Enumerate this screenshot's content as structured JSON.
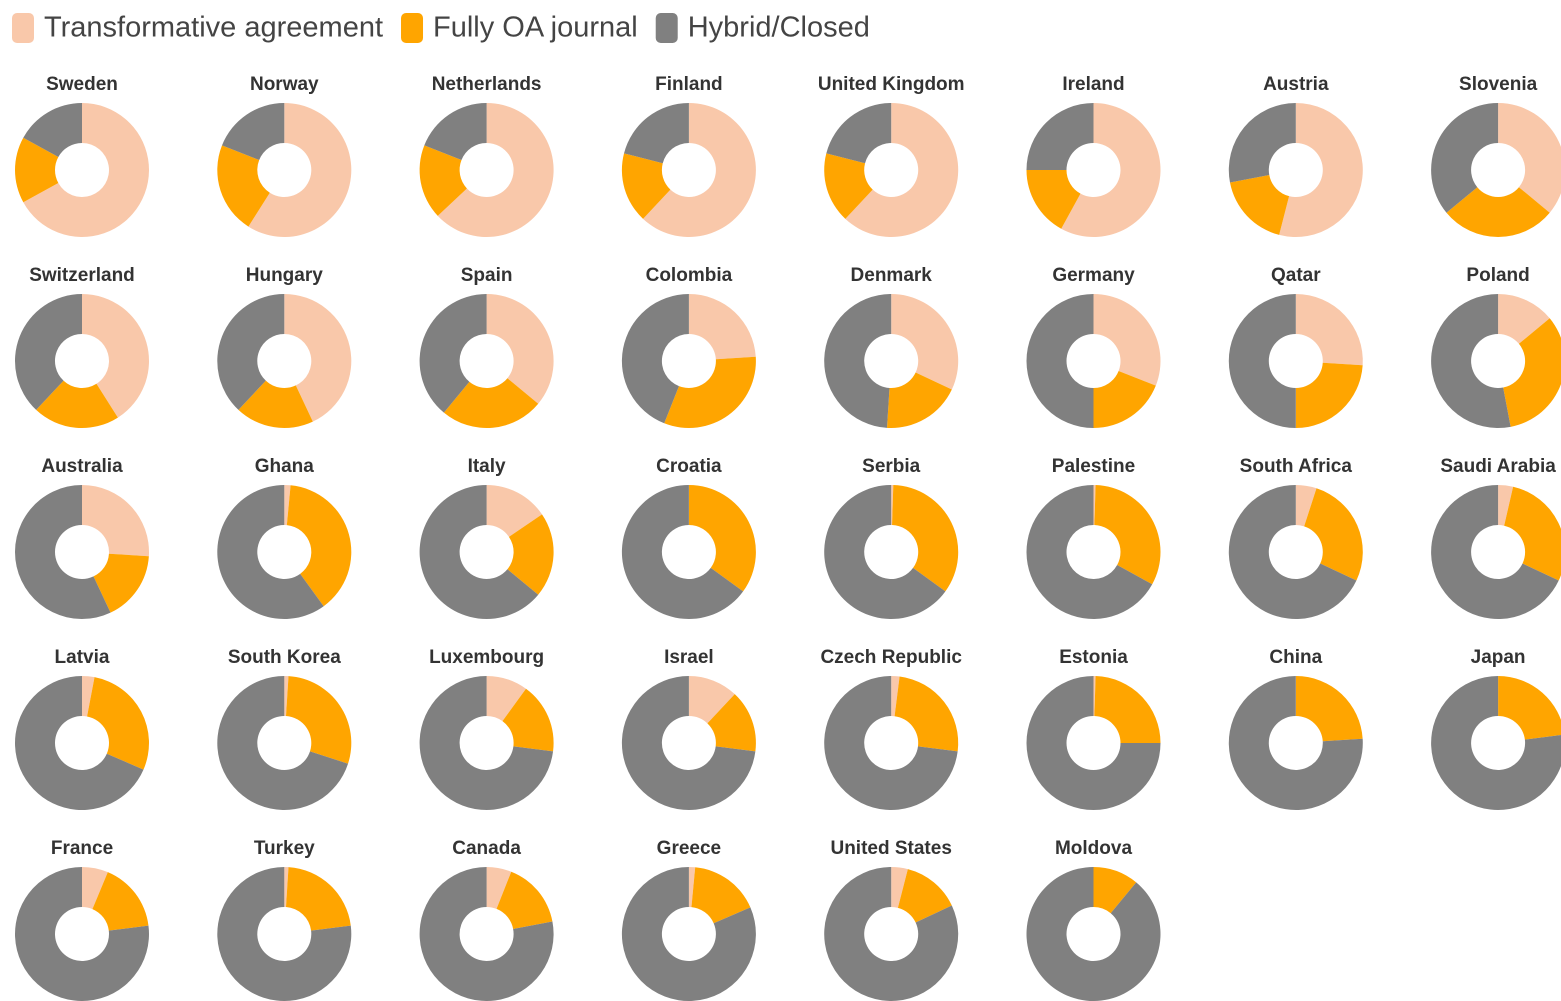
{
  "chart_data": {
    "type": "donut",
    "categories": [
      "Sweden",
      "Norway",
      "Netherlands",
      "Finland",
      "United Kingdom",
      "Ireland",
      "Austria",
      "Slovenia",
      "Switzerland",
      "Hungary",
      "Spain",
      "Colombia",
      "Denmark",
      "Germany",
      "Qatar",
      "Poland",
      "Australia",
      "Ghana",
      "Italy",
      "Croatia",
      "Serbia",
      "Palestine",
      "South Africa",
      "Saudi Arabia",
      "Latvia",
      "South Korea",
      "Luxembourg",
      "Israel",
      "Czech Republic",
      "Estonia",
      "China",
      "Japan",
      "France",
      "Turkey",
      "Canada",
      "Greece",
      "United States",
      "Moldova"
    ],
    "series": [
      {
        "name": "Transformative agreement",
        "color": "#f9c8aa",
        "values": [
          67,
          59,
          63,
          62,
          62,
          58,
          54,
          36,
          41,
          43,
          36,
          24,
          32,
          31,
          26,
          14,
          26,
          1.5,
          15.5,
          0,
          0.5,
          0.5,
          5,
          3.6,
          3,
          1,
          10,
          12,
          2,
          0.5,
          0,
          0,
          6.3,
          1,
          6,
          1.5,
          4,
          0
        ]
      },
      {
        "name": "Fully OA journal",
        "color": "#ffa500",
        "values": [
          16,
          22,
          18,
          17,
          17,
          17,
          18,
          28,
          21,
          19,
          25,
          32,
          19,
          19,
          24,
          33,
          17,
          38.5,
          20.5,
          35,
          34.5,
          32.5,
          27,
          28.4,
          28.5,
          29,
          17,
          15,
          25,
          24.5,
          24,
          23,
          16.7,
          22,
          16,
          17,
          14,
          11
        ]
      },
      {
        "name": "Hybrid/Closed",
        "color": "#808080",
        "values": [
          17,
          19,
          19,
          21,
          21,
          25,
          28,
          36,
          38,
          38,
          39,
          44,
          49,
          50,
          50,
          53,
          57,
          60,
          64,
          65,
          65,
          67,
          68,
          68,
          68.5,
          70,
          73,
          73,
          73,
          75,
          76,
          77,
          77,
          77,
          78,
          81.5,
          82,
          89
        ]
      }
    ]
  }
}
